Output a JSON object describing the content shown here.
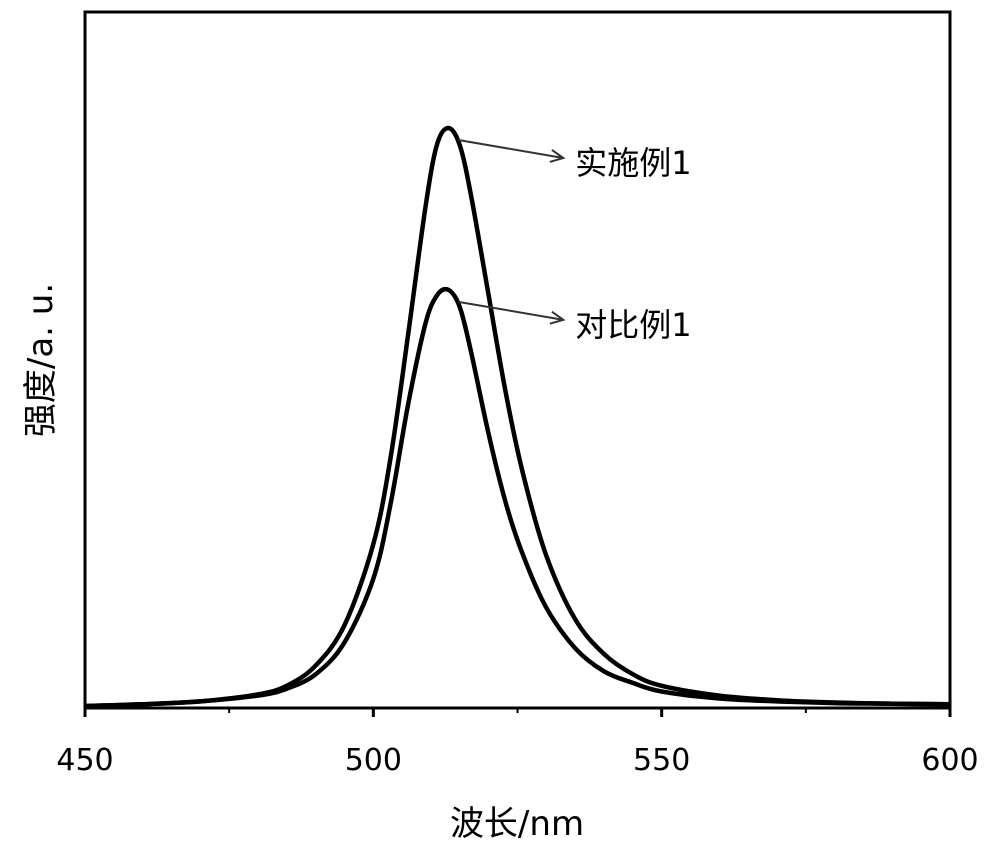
{
  "chart_data": {
    "type": "line",
    "title": "",
    "xlabel": "波长/nm",
    "ylabel": "强度/a. u.",
    "xlim": [
      450,
      600
    ],
    "ylim": [
      0,
      1.1
    ],
    "xticks": [
      "450",
      "500",
      "550",
      "600"
    ],
    "grid": false,
    "legend": "none",
    "series": [
      {
        "name": "实施例1",
        "x": [
          450,
          460,
          470,
          480,
          485,
          490,
          495,
          500,
          503,
          506,
          509,
          511,
          513,
          515,
          517,
          520,
          523,
          526,
          530,
          535,
          540,
          545,
          550,
          560,
          570,
          580,
          590,
          600
        ],
        "values": [
          0.0,
          0.003,
          0.008,
          0.02,
          0.035,
          0.07,
          0.14,
          0.28,
          0.43,
          0.64,
          0.86,
          0.97,
          1.0,
          0.97,
          0.88,
          0.71,
          0.54,
          0.4,
          0.26,
          0.15,
          0.09,
          0.055,
          0.035,
          0.018,
          0.01,
          0.006,
          0.004,
          0.003
        ]
      },
      {
        "name": "对比例1",
        "x": [
          450,
          460,
          470,
          480,
          485,
          490,
          495,
          500,
          503,
          506,
          509,
          511,
          513,
          515,
          517,
          520,
          523,
          526,
          530,
          535,
          540,
          545,
          550,
          560,
          570,
          580,
          590,
          600
        ],
        "values": [
          0.0,
          0.003,
          0.008,
          0.018,
          0.03,
          0.055,
          0.11,
          0.22,
          0.35,
          0.52,
          0.66,
          0.71,
          0.72,
          0.69,
          0.61,
          0.47,
          0.35,
          0.26,
          0.17,
          0.1,
          0.06,
          0.04,
          0.025,
          0.013,
          0.008,
          0.005,
          0.004,
          0.003
        ]
      }
    ],
    "annotations": [
      {
        "text": "实施例1",
        "series": 0
      },
      {
        "text": "对比例1",
        "series": 1
      }
    ]
  }
}
